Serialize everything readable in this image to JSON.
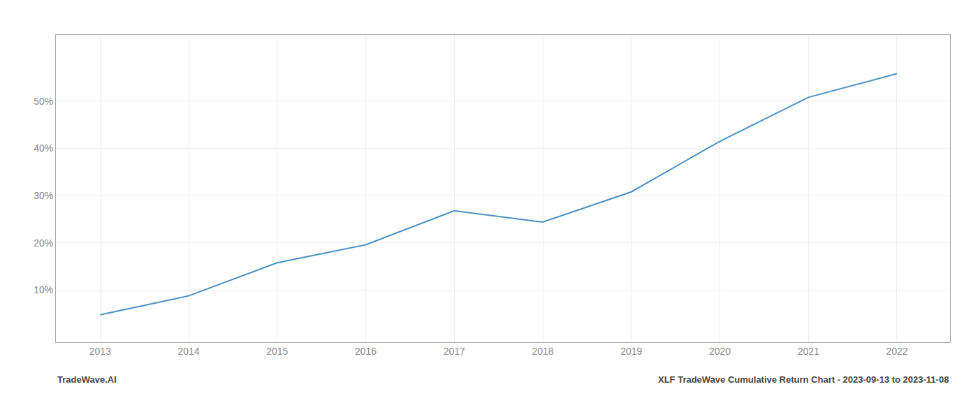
{
  "chart_data": {
    "type": "line",
    "x": [
      2013,
      2014,
      2015,
      2016,
      2017,
      2018,
      2019,
      2020,
      2021,
      2022
    ],
    "values": [
      0.048,
      0.088,
      0.158,
      0.196,
      0.268,
      0.244,
      0.308,
      0.415,
      0.508,
      0.558
    ],
    "color": "#4a90c4",
    "xlim": [
      2012.5,
      2022.6
    ],
    "ylim": [
      -0.01,
      0.64
    ],
    "xticks": [
      2013,
      2014,
      2015,
      2016,
      2017,
      2018,
      2019,
      2020,
      2021,
      2022
    ],
    "yticks": [
      {
        "value": 0.1,
        "label": "10%"
      },
      {
        "value": 0.2,
        "label": "20%"
      },
      {
        "value": 0.3,
        "label": "30%"
      },
      {
        "value": 0.4,
        "label": "40%"
      },
      {
        "value": 0.5,
        "label": "50%"
      }
    ],
    "grid": true,
    "annotations": [
      "TradeWave.AI",
      "XLF TradeWave Cumulative Return Chart - 2023-09-13 to 2023-11-08"
    ]
  }
}
